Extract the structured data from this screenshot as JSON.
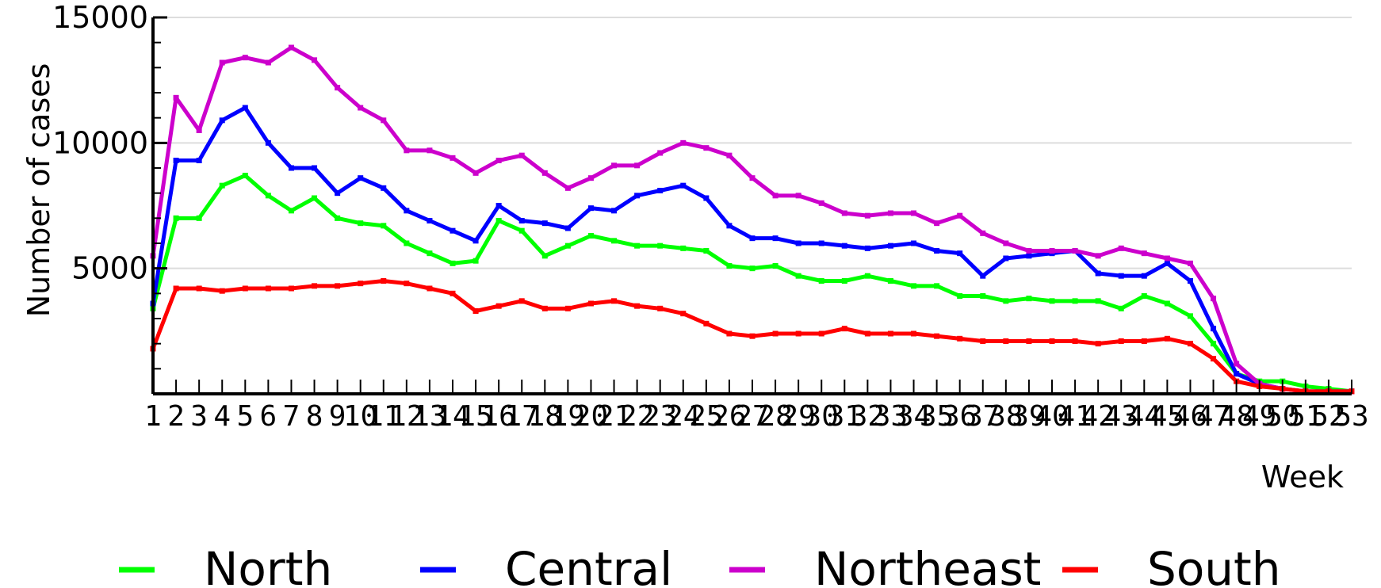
{
  "chart_data": {
    "type": "line",
    "xlabel": "Week",
    "ylabel": "Number of cases",
    "ylim": [
      0,
      15000
    ],
    "yticks": [
      "5000",
      "10000",
      "15000"
    ],
    "xlim": [
      1,
      53
    ],
    "x": [
      1,
      2,
      3,
      4,
      5,
      6,
      7,
      8,
      9,
      10,
      11,
      12,
      13,
      14,
      15,
      16,
      17,
      18,
      19,
      20,
      21,
      22,
      23,
      24,
      25,
      26,
      27,
      28,
      29,
      30,
      31,
      32,
      33,
      34,
      35,
      36,
      37,
      38,
      39,
      40,
      41,
      42,
      43,
      44,
      45,
      46,
      47,
      48,
      49,
      50,
      51,
      52,
      53
    ],
    "grid": true,
    "legend_position": "bottom",
    "series": [
      {
        "name": "North",
        "color": "#00ff00",
        "values": [
          3400,
          7000,
          7000,
          8300,
          8700,
          7900,
          7300,
          7800,
          7000,
          6800,
          6700,
          6000,
          5600,
          5200,
          5300,
          6900,
          6500,
          5500,
          5900,
          6300,
          6100,
          5900,
          5900,
          5800,
          5700,
          5100,
          5000,
          5100,
          4700,
          4500,
          4500,
          4700,
          4500,
          4300,
          4300,
          3900,
          3900,
          3700,
          3800,
          3700,
          3700,
          3700,
          3400,
          3900,
          3600,
          3100,
          2000,
          800,
          500,
          500,
          300,
          200,
          100
        ]
      },
      {
        "name": "Central",
        "color": "#0000ff",
        "values": [
          3600,
          9300,
          9300,
          10900,
          11400,
          10000,
          9000,
          9000,
          8000,
          8600,
          8200,
          7300,
          6900,
          6500,
          6100,
          7500,
          6900,
          6800,
          6600,
          7400,
          7300,
          7900,
          8100,
          8300,
          7800,
          6700,
          6200,
          6200,
          6000,
          6000,
          5900,
          5800,
          5900,
          6000,
          5700,
          5600,
          4700,
          5400,
          5500,
          5600,
          5700,
          4800,
          4700,
          4700,
          5200,
          4500,
          2600,
          800,
          400,
          200,
          100,
          100,
          100
        ]
      },
      {
        "name": "Northeast",
        "color": "#cc00cc",
        "values": [
          5500,
          11800,
          10500,
          13200,
          13400,
          13200,
          13800,
          13300,
          12200,
          11400,
          10900,
          9700,
          9700,
          9400,
          8800,
          9300,
          9500,
          8800,
          8200,
          8600,
          9100,
          9100,
          9600,
          10000,
          9800,
          9500,
          8600,
          7900,
          7900,
          7600,
          7200,
          7100,
          7200,
          7200,
          6800,
          7100,
          6400,
          6000,
          5700,
          5700,
          5700,
          5500,
          5800,
          5600,
          5400,
          5200,
          3800,
          1200,
          400,
          200,
          100,
          100,
          100
        ]
      },
      {
        "name": "South",
        "color": "#ff0000",
        "values": [
          1800,
          4200,
          4200,
          4100,
          4200,
          4200,
          4200,
          4300,
          4300,
          4400,
          4500,
          4400,
          4200,
          4000,
          3300,
          3500,
          3700,
          3400,
          3400,
          3600,
          3700,
          3500,
          3400,
          3200,
          2800,
          2400,
          2300,
          2400,
          2400,
          2400,
          2600,
          2400,
          2400,
          2400,
          2300,
          2200,
          2100,
          2100,
          2100,
          2100,
          2100,
          2000,
          2100,
          2100,
          2200,
          2000,
          1400,
          500,
          300,
          200,
          100,
          100,
          100
        ]
      }
    ]
  }
}
